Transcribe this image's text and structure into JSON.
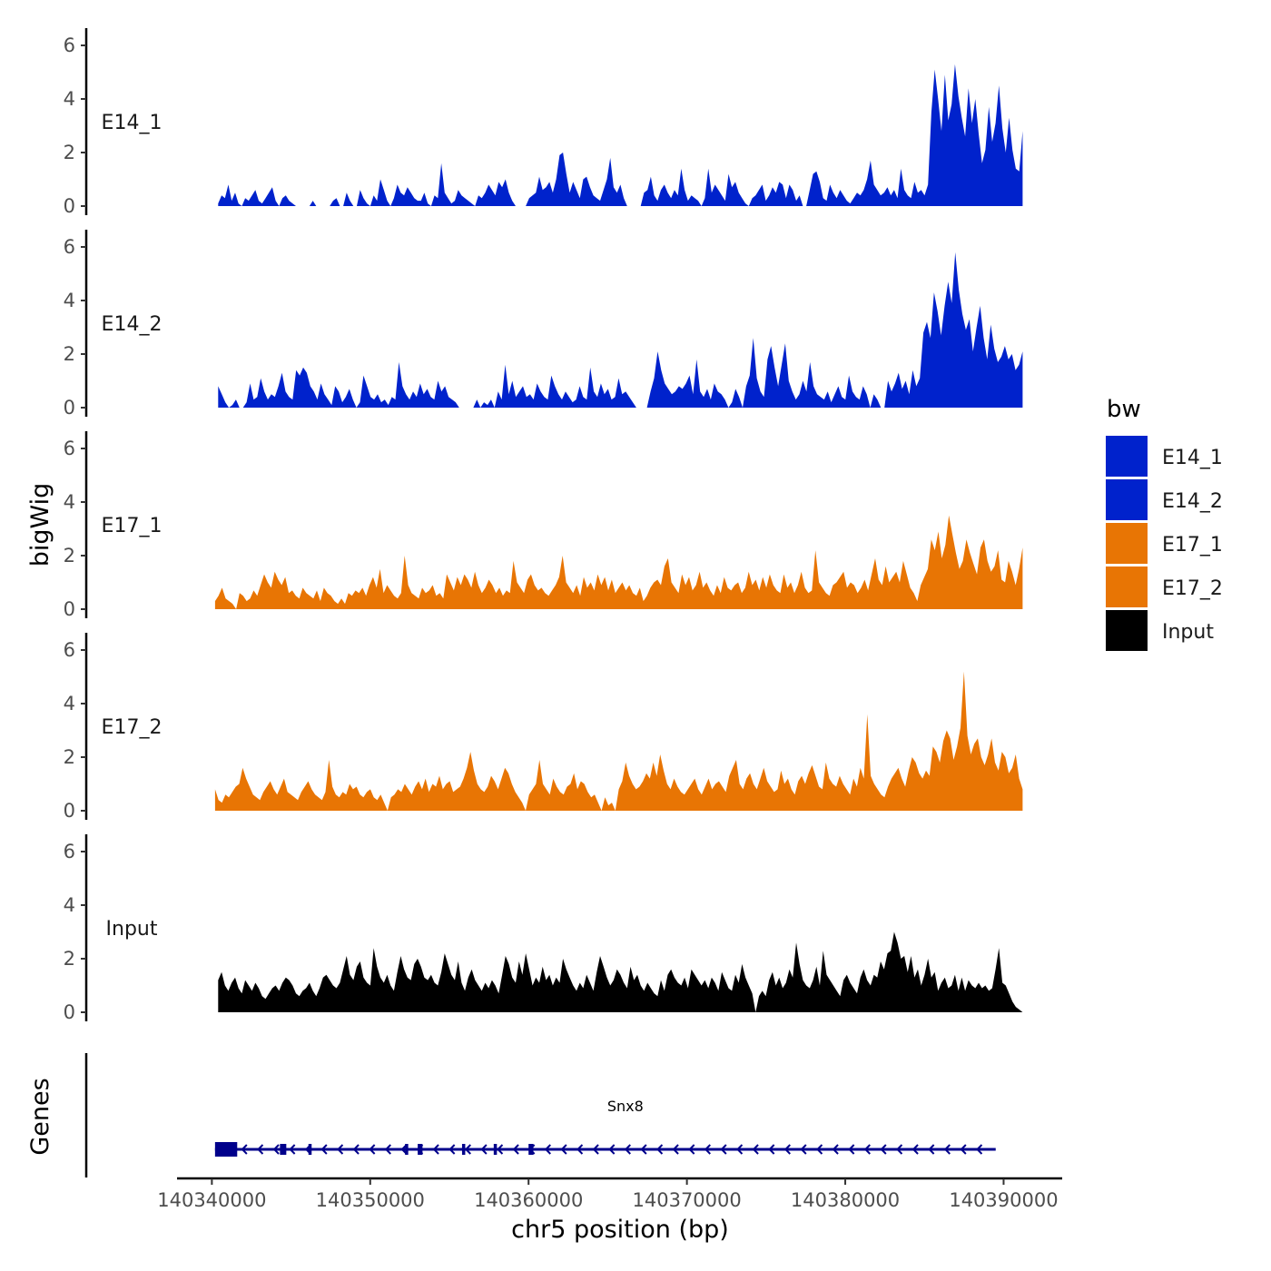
{
  "chart_data": {
    "type": "area",
    "title": "",
    "xlabel": "chr5 position (bp)",
    "ylabel": "bigWig",
    "gene_track_label": "Genes",
    "legend_title": "bw",
    "legend": [
      {
        "name": "E14_1",
        "color": "#0022CC"
      },
      {
        "name": "E14_2",
        "color": "#0022CC"
      },
      {
        "name": "E17_1",
        "color": "#E87504"
      },
      {
        "name": "E17_2",
        "color": "#E87504"
      },
      {
        "name": "Input",
        "color": "#000000"
      }
    ],
    "xlim": [
      140337800,
      140393700
    ],
    "x_ticks": [
      140340000,
      140350000,
      140360000,
      140370000,
      140380000,
      140390000
    ],
    "x_tick_labels": [
      "140340000",
      "140350000",
      "140360000",
      "140370000",
      "140380000",
      "140390000"
    ],
    "ylim": [
      0,
      6.4
    ],
    "y_ticks": [
      0,
      2,
      4,
      6
    ],
    "y_tick_labels": [
      "0",
      "2",
      "4",
      "6"
    ],
    "series": [
      {
        "name": "E14_1",
        "color": "#0022CC",
        "x_start": 140340400,
        "x_end": 140391200,
        "values": [
          0.1,
          0.4,
          0.3,
          0.8,
          0.2,
          0.5,
          0.1,
          0,
          0.3,
          0.2,
          0.4,
          0.6,
          0.2,
          0.1,
          0.3,
          0.5,
          0.7,
          0.2,
          0,
          0.3,
          0.4,
          0.2,
          0.1,
          0,
          0,
          0,
          0,
          0,
          0.2,
          0,
          0,
          0,
          0,
          0,
          0.2,
          0.3,
          0,
          0,
          0.5,
          0.2,
          0,
          0,
          0.6,
          0.3,
          0.1,
          0,
          0.4,
          0.2,
          1.0,
          0.6,
          0.2,
          0,
          0.3,
          0.8,
          0.5,
          0.4,
          0.7,
          0.5,
          0.3,
          0.2,
          0.2,
          0.5,
          0.1,
          0,
          0.4,
          0.3,
          1.6,
          0.5,
          0.3,
          0.1,
          0.2,
          0.6,
          0.4,
          0.3,
          0.2,
          0.1,
          0,
          0.4,
          0.3,
          0.5,
          0.8,
          0.6,
          0.4,
          0.9,
          0.7,
          1.0,
          0.5,
          0.2,
          0,
          0,
          0,
          0,
          0.3,
          0.4,
          0.5,
          1.1,
          0.6,
          0.7,
          0.9,
          0.5,
          1.0,
          1.9,
          2.0,
          1.2,
          0.5,
          0.9,
          0.6,
          0.3,
          1.0,
          1.1,
          0.7,
          0.4,
          0.3,
          0.2,
          0.6,
          1.0,
          1.8,
          0.7,
          0.5,
          0.8,
          0.3,
          0,
          0,
          0,
          0,
          0,
          0.5,
          0.6,
          1.1,
          0.4,
          0.2,
          0.6,
          0.8,
          0.5,
          0.3,
          0.6,
          0.4,
          1.4,
          0.6,
          0.2,
          0.4,
          0.3,
          0.2,
          0,
          0.3,
          1.4,
          0.5,
          0.8,
          0.6,
          0.4,
          0.2,
          1.2,
          0.7,
          0.9,
          0.5,
          0.3,
          0.1,
          0,
          0.3,
          0.4,
          0.6,
          0.8,
          0.2,
          0.4,
          0.7,
          0.5,
          0.9,
          0.8,
          0.3,
          0.8,
          0.6,
          0.2,
          0.4,
          0,
          0,
          0.6,
          1.2,
          1.3,
          0.9,
          0.3,
          0.2,
          0.8,
          0.5,
          0.3,
          0.6,
          0.4,
          0.2,
          0.1,
          0.3,
          0.5,
          0.4,
          0.6,
          1.0,
          1.7,
          0.8,
          0.6,
          0.4,
          0.5,
          0.7,
          0.4,
          0.6,
          0.3,
          1.4,
          0.6,
          0.4,
          0.3,
          0.9,
          0.5,
          0.6,
          0.4,
          0.8,
          3.5,
          5.1,
          4.0,
          2.8,
          4.9,
          3.2,
          3.8,
          5.3,
          4.1,
          3.3,
          2.6,
          4.4,
          3.1,
          4.0,
          2.7,
          1.6,
          2.1,
          3.7,
          2.4,
          3.1,
          4.5,
          2.9,
          2.0,
          3.3,
          2.1,
          1.4,
          1.3,
          2.8
        ]
      },
      {
        "name": "E14_2",
        "color": "#0022CC",
        "x_start": 140340400,
        "x_end": 140391200,
        "values": [
          0.8,
          0.5,
          0.2,
          0,
          0.1,
          0.3,
          0,
          0,
          0.2,
          0.9,
          0.3,
          0.4,
          1.1,
          0.6,
          0.3,
          0.5,
          0.4,
          0.8,
          1.3,
          0.6,
          0.4,
          0.3,
          1.4,
          1.2,
          1.5,
          1.3,
          0.8,
          0.6,
          0.3,
          0.9,
          0.5,
          0.3,
          0.1,
          0.8,
          0.6,
          0.2,
          0.4,
          0.7,
          0.3,
          0,
          0.2,
          1.2,
          0.8,
          0.4,
          0.3,
          0.5,
          0.2,
          0.3,
          0.1,
          0.4,
          0.3,
          1.7,
          0.8,
          0.5,
          0.3,
          0.6,
          0.4,
          0.9,
          0.5,
          0.7,
          0.4,
          0.3,
          1.0,
          0.6,
          0.8,
          0.4,
          0.3,
          0.2,
          0,
          0,
          0,
          0,
          0,
          0.3,
          0,
          0.2,
          0.1,
          0.3,
          0,
          0.6,
          0.3,
          1.6,
          0.5,
          1.0,
          0.4,
          0.6,
          0.8,
          0.4,
          0.5,
          0.3,
          0.9,
          0.6,
          0.4,
          0.3,
          1.2,
          0.8,
          0.5,
          0.3,
          0.6,
          0.4,
          0.2,
          0.3,
          0.8,
          0.4,
          0.3,
          1.5,
          0.6,
          0.4,
          0.9,
          0.5,
          0.7,
          0.3,
          0.4,
          1.1,
          0.5,
          0.6,
          0.4,
          0.2,
          0,
          0,
          0,
          0,
          0.6,
          1.1,
          2.1,
          1.4,
          0.9,
          0.7,
          0.5,
          0.6,
          0.8,
          0.7,
          0.9,
          1.2,
          0.5,
          1.8,
          0.6,
          0.4,
          0.7,
          0.3,
          0.9,
          0.6,
          0.5,
          0.3,
          0,
          0.2,
          0.7,
          0.4,
          0,
          0.8,
          1.2,
          2.6,
          1.1,
          0.6,
          0.4,
          1.8,
          2.3,
          1.5,
          0.8,
          1.6,
          2.4,
          1.0,
          0.6,
          0.3,
          0.5,
          1.0,
          0.6,
          1.7,
          0.8,
          0.5,
          0.4,
          0.3,
          0.6,
          0.2,
          0.5,
          0.8,
          0.4,
          0.3,
          1.2,
          0.6,
          0.4,
          0.3,
          0.8,
          0.5,
          0,
          0.5,
          0.3,
          0,
          0,
          1.0,
          0.6,
          0.9,
          1.3,
          0.7,
          1.0,
          0.5,
          1.4,
          0.8,
          1.1,
          2.8,
          3.2,
          2.6,
          4.3,
          3.6,
          2.7,
          3.8,
          4.7,
          3.9,
          5.8,
          4.4,
          3.5,
          2.9,
          3.3,
          2.1,
          3.0,
          3.8,
          2.6,
          1.8,
          3.1,
          2.2,
          1.7,
          1.9,
          2.3,
          1.8,
          2.0,
          1.4,
          1.6,
          2.1
        ]
      },
      {
        "name": "E17_1",
        "color": "#E87504",
        "x_start": 140340200,
        "x_end": 140391200,
        "values": [
          0.3,
          0.5,
          0.8,
          0.4,
          0.3,
          0.2,
          0,
          0.6,
          0.5,
          0.3,
          0.4,
          0.7,
          0.5,
          0.9,
          1.3,
          1.0,
          0.8,
          1.4,
          1.1,
          0.9,
          1.2,
          0.6,
          0.7,
          0.5,
          0.4,
          0.8,
          0.6,
          0.5,
          0.4,
          0.7,
          0.3,
          0.8,
          0.6,
          0.5,
          0.3,
          0.2,
          0.4,
          0.2,
          0.6,
          0.5,
          0.7,
          0.6,
          0.8,
          0.5,
          0.9,
          1.2,
          0.8,
          1.5,
          0.6,
          0.9,
          0.7,
          0.5,
          0.4,
          0.6,
          2.0,
          0.9,
          0.6,
          0.5,
          0.4,
          0.8,
          0.6,
          0.7,
          0.9,
          0.5,
          0.6,
          0.4,
          1.3,
          1.0,
          0.7,
          1.2,
          0.9,
          1.3,
          1.1,
          0.8,
          1.4,
          0.9,
          0.6,
          0.8,
          1.1,
          0.9,
          0.6,
          0.8,
          0.5,
          0.7,
          0.6,
          1.8,
          1.0,
          0.8,
          0.6,
          1.1,
          1.3,
          0.9,
          0.7,
          0.8,
          0.6,
          0.5,
          0.7,
          0.9,
          1.2,
          2.0,
          1.0,
          0.8,
          0.6,
          0.9,
          0.5,
          1.2,
          0.8,
          1.0,
          0.7,
          1.3,
          0.9,
          1.2,
          0.7,
          1.1,
          0.6,
          0.8,
          1.0,
          0.7,
          0.9,
          0.6,
          0.5,
          0.8,
          0.3,
          0.5,
          0.8,
          1.0,
          1.1,
          0.9,
          1.6,
          1.9,
          1.0,
          0.8,
          0.6,
          1.3,
          0.9,
          1.2,
          0.7,
          0.9,
          1.4,
          0.8,
          1.0,
          0.7,
          0.5,
          0.9,
          0.6,
          1.2,
          0.8,
          0.7,
          0.9,
          1.0,
          0.6,
          0.8,
          1.4,
          0.9,
          1.1,
          0.7,
          1.2,
          0.8,
          1.3,
          0.9,
          0.7,
          0.6,
          1.3,
          0.8,
          1.0,
          0.6,
          0.9,
          1.4,
          0.8,
          0.6,
          0.7,
          2.2,
          1.0,
          0.8,
          0.6,
          0.5,
          0.9,
          1.0,
          1.2,
          1.4,
          0.8,
          1.0,
          0.9,
          0.6,
          0.8,
          1.1,
          0.7,
          1.3,
          1.9,
          1.1,
          0.9,
          1.6,
          1.0,
          1.2,
          1.4,
          1.0,
          1.8,
          1.3,
          0.8,
          0.6,
          0.3,
          0.9,
          1.2,
          1.5,
          2.6,
          2.2,
          2.9,
          1.9,
          2.4,
          3.5,
          2.8,
          2.1,
          1.5,
          1.8,
          2.6,
          2.1,
          1.7,
          1.3,
          2.3,
          2.6,
          1.8,
          1.4,
          1.6,
          2.2,
          1.1,
          1.0,
          1.8,
          1.4,
          0.9,
          1.5,
          2.3
        ]
      },
      {
        "name": "E17_2",
        "color": "#E87504",
        "x_start": 140340200,
        "x_end": 140391200,
        "values": [
          0.8,
          0.4,
          0.3,
          0.6,
          0.5,
          0.7,
          0.9,
          1.0,
          1.6,
          1.2,
          0.9,
          0.6,
          0.5,
          0.4,
          0.7,
          0.9,
          1.1,
          0.8,
          0.6,
          0.9,
          1.2,
          0.7,
          0.6,
          0.5,
          0.4,
          0.7,
          0.9,
          1.1,
          0.8,
          0.6,
          0.5,
          0.4,
          0.7,
          1.9,
          0.9,
          0.6,
          0.5,
          0.7,
          0.6,
          1.0,
          0.8,
          0.9,
          0.6,
          0.5,
          0.7,
          0.8,
          0.5,
          0.4,
          0.6,
          0.3,
          0,
          0.5,
          0.6,
          0.8,
          0.7,
          1.0,
          0.8,
          0.6,
          0.9,
          1.1,
          0.8,
          1.2,
          0.7,
          1.0,
          0.9,
          1.3,
          0.8,
          1.0,
          1.1,
          0.7,
          0.8,
          0.9,
          1.2,
          1.6,
          2.2,
          1.5,
          1.0,
          0.8,
          0.7,
          0.9,
          1.3,
          1.1,
          0.8,
          1.2,
          1.6,
          1.4,
          1.0,
          0.7,
          0.5,
          0.3,
          0,
          0.6,
          0.8,
          1.0,
          1.9,
          1.0,
          0.8,
          0.6,
          1.2,
          0.9,
          0.7,
          0.6,
          0.9,
          1.0,
          1.4,
          0.8,
          1.1,
          1.0,
          0.7,
          0.5,
          0.6,
          0.3,
          0,
          0.5,
          0.2,
          0.3,
          0,
          0.8,
          1.1,
          1.8,
          1.3,
          1.0,
          0.8,
          0.9,
          1.1,
          1.4,
          1.2,
          1.8,
          1.3,
          2.1,
          1.5,
          1.0,
          0.8,
          1.2,
          0.9,
          0.7,
          0.6,
          0.8,
          1.0,
          1.2,
          0.8,
          0.6,
          0.9,
          1.2,
          0.8,
          1.0,
          1.1,
          0.9,
          0.7,
          1.3,
          1.6,
          1.9,
          1.0,
          0.8,
          1.2,
          1.4,
          1.0,
          0.8,
          1.2,
          1.6,
          1.1,
          0.9,
          0.7,
          0.8,
          1.5,
          1.0,
          1.2,
          0.8,
          0.6,
          1.1,
          1.3,
          1.0,
          1.4,
          1.7,
          1.3,
          0.9,
          0.8,
          1.8,
          1.2,
          1.0,
          0.9,
          1.3,
          1.0,
          0.8,
          0.6,
          1.2,
          0.9,
          1.6,
          1.2,
          3.6,
          1.3,
          1.0,
          0.8,
          0.6,
          0.5,
          0.9,
          1.2,
          1.4,
          1.6,
          1.2,
          0.9,
          1.5,
          2.0,
          1.8,
          1.4,
          1.2,
          1.5,
          1.3,
          2.4,
          2.2,
          1.8,
          2.6,
          3.0,
          2.7,
          1.9,
          2.4,
          3.1,
          5.2,
          2.8,
          2.1,
          2.5,
          2.7,
          2.0,
          1.7,
          2.1,
          2.7,
          1.8,
          1.5,
          2.2,
          2.0,
          1.4,
          1.6,
          2.1,
          1.2,
          0.8
        ]
      },
      {
        "name": "Input",
        "color": "#000000",
        "x_start": 140340400,
        "x_end": 140391200,
        "values": [
          1.2,
          1.5,
          1.0,
          0.8,
          1.1,
          1.3,
          0.9,
          0.7,
          1.2,
          1.0,
          0.8,
          1.1,
          0.9,
          0.6,
          0.5,
          0.7,
          0.9,
          1.0,
          0.8,
          1.1,
          1.3,
          1.2,
          1.0,
          0.7,
          0.6,
          0.8,
          0.9,
          1.1,
          0.8,
          0.6,
          0.9,
          1.3,
          1.4,
          1.2,
          1.0,
          0.9,
          1.1,
          1.6,
          2.1,
          1.4,
          1.2,
          1.7,
          1.9,
          1.3,
          1.1,
          1.0,
          2.4,
          1.7,
          1.3,
          1.1,
          1.4,
          1.0,
          0.8,
          1.5,
          2.1,
          1.6,
          1.3,
          1.2,
          1.8,
          2.0,
          1.7,
          1.3,
          1.2,
          1.4,
          1.1,
          1.0,
          1.5,
          2.2,
          1.8,
          1.4,
          1.2,
          1.9,
          1.1,
          0.8,
          1.3,
          1.6,
          1.2,
          1.0,
          0.8,
          1.1,
          0.9,
          1.2,
          1.0,
          0.7,
          1.4,
          2.1,
          1.8,
          1.3,
          1.1,
          1.9,
          1.4,
          2.2,
          1.6,
          1.0,
          1.3,
          1.1,
          1.7,
          1.2,
          1.4,
          1.0,
          1.3,
          1.1,
          2.0,
          1.6,
          1.3,
          1.0,
          0.8,
          1.1,
          0.9,
          1.4,
          1.1,
          0.8,
          1.5,
          2.1,
          1.7,
          1.3,
          1.0,
          1.2,
          1.6,
          1.4,
          1.1,
          0.9,
          1.7,
          1.2,
          1.4,
          1.0,
          0.8,
          1.1,
          0.9,
          0.7,
          0.6,
          1.2,
          0.8,
          1.4,
          1.6,
          1.3,
          1.1,
          1.0,
          1.3,
          0.9,
          1.6,
          1.4,
          1.2,
          1.0,
          1.2,
          0.9,
          1.3,
          1.1,
          0.8,
          1.5,
          1.2,
          0.9,
          0.8,
          1.4,
          1.1,
          1.8,
          1.3,
          1.0,
          0.7,
          0,
          0.6,
          0.8,
          0.6,
          1.2,
          1.5,
          1.0,
          1.3,
          0.9,
          1.1,
          1.6,
          1.3,
          2.6,
          1.8,
          1.2,
          1.0,
          0.9,
          1.2,
          1.7,
          1.0,
          2.3,
          1.4,
          1.2,
          1.0,
          0.8,
          0.6,
          1.2,
          1.4,
          1.1,
          0.9,
          0.7,
          1.3,
          1.6,
          1.2,
          1.0,
          1.4,
          1.3,
          1.9,
          1.6,
          2.2,
          2.3,
          3.0,
          2.6,
          2.0,
          2.1,
          1.5,
          2.1,
          1.3,
          1.6,
          1.0,
          1.4,
          2.0,
          1.3,
          1.5,
          0.8,
          1.1,
          1.3,
          0.9,
          1.0,
          1.4,
          0.8,
          1.3,
          0.8,
          1.2,
          1.0,
          0.9,
          1.1,
          0.9,
          1.0,
          0.8,
          0.9,
          1.6,
          2.4,
          1.1,
          1.0,
          0.7,
          0.4,
          0.2,
          0.1,
          0
        ]
      }
    ],
    "gene": {
      "name": "Snx8",
      "start": 140340200,
      "end": 140389500,
      "strand": "-",
      "color": "#00008B",
      "exons": [
        [
          140340200,
          140341600
        ],
        [
          140344300,
          140344700
        ],
        [
          140346100,
          140346300
        ],
        [
          140352200,
          140352400
        ],
        [
          140353000,
          140353300
        ],
        [
          140355800,
          140356000
        ],
        [
          140357800,
          140358000
        ],
        [
          140360000,
          140360300
        ]
      ]
    }
  }
}
